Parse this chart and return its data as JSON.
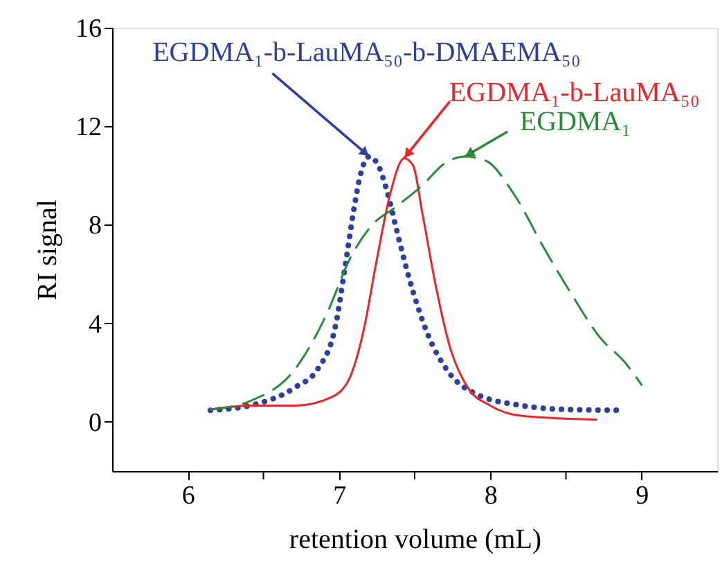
{
  "chart_data": {
    "type": "line",
    "xlabel": "retention volume (mL)",
    "ylabel": "RI signal",
    "xlim": [
      5.5,
      9.5
    ],
    "ylim": [
      -2,
      16
    ],
    "xticks": [
      6,
      {
        "value": 6.5,
        "label": null
      },
      7,
      {
        "value": 7.5,
        "label": null
      },
      8,
      {
        "value": 8.5,
        "label": null
      },
      9
    ],
    "yticks": [
      0,
      4,
      8,
      12,
      16
    ],
    "grid": false,
    "series": [
      {
        "color": "#2e3f9e",
        "line_style": "dotted",
        "x": [
          6.15,
          6.41,
          6.71,
          6.86,
          6.98,
          7.04,
          7.1,
          7.14,
          7.2,
          7.26,
          7.32,
          7.38,
          7.46,
          7.58,
          7.73,
          7.91,
          8.21,
          8.51,
          8.88
        ],
        "values": [
          0.47,
          0.66,
          1.4,
          2.15,
          4.0,
          6.3,
          8.7,
          10.0,
          10.77,
          10.4,
          9.3,
          7.8,
          5.9,
          3.65,
          1.97,
          1.12,
          0.66,
          0.5,
          0.47
        ]
      },
      {
        "color": "#e8262a",
        "line_style": "solid",
        "x": [
          6.15,
          6.41,
          6.71,
          6.95,
          7.07,
          7.16,
          7.25,
          7.34,
          7.43,
          7.49,
          7.55,
          7.64,
          7.73,
          7.85,
          8.0,
          8.21,
          8.7
        ],
        "values": [
          0.5,
          0.66,
          0.66,
          1.0,
          1.78,
          3.65,
          6.6,
          9.3,
          10.7,
          10.4,
          8.5,
          5.5,
          3.1,
          1.4,
          0.66,
          0.24,
          0.09
        ]
      },
      {
        "color": "#2a8a3a",
        "line_style": "dashed",
        "x": [
          6.15,
          6.41,
          6.71,
          6.92,
          7.07,
          7.22,
          7.37,
          7.55,
          7.7,
          7.83,
          7.97,
          8.15,
          8.36,
          8.54,
          8.72,
          8.9,
          9.0
        ],
        "values": [
          0.5,
          0.84,
          2.15,
          4.4,
          6.6,
          8.0,
          8.7,
          9.6,
          10.5,
          10.77,
          10.6,
          9.3,
          7.0,
          5.15,
          3.46,
          2.34,
          1.5
        ]
      }
    ],
    "annotations": [
      {
        "text": "EGDMA₁-b-LauMA₅₀-b-DMAEMA₅₀",
        "x": 7.2,
        "y": 10.77
      },
      {
        "text": "EGDMA₁-b-LauMA₅₀",
        "x": 7.43,
        "y": 10.7
      },
      {
        "text": "EGDMA₁",
        "x": 7.83,
        "y": 10.77
      }
    ]
  }
}
